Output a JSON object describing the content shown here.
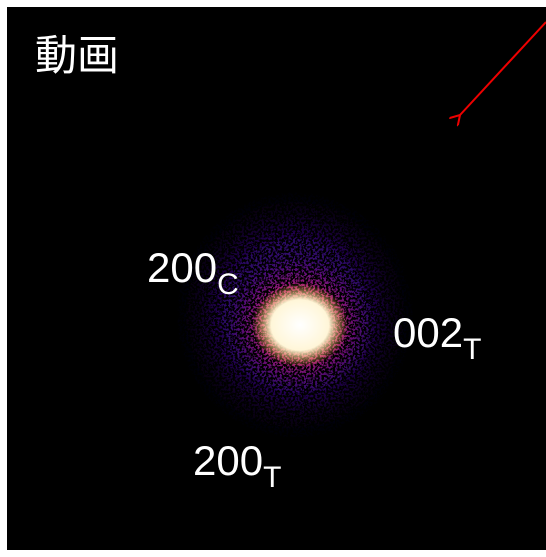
{
  "title": "動画",
  "labels": [
    {
      "main": "200",
      "sub": "C"
    },
    {
      "main": "002",
      "sub": "T"
    },
    {
      "main": "200",
      "sub": "T"
    }
  ]
}
